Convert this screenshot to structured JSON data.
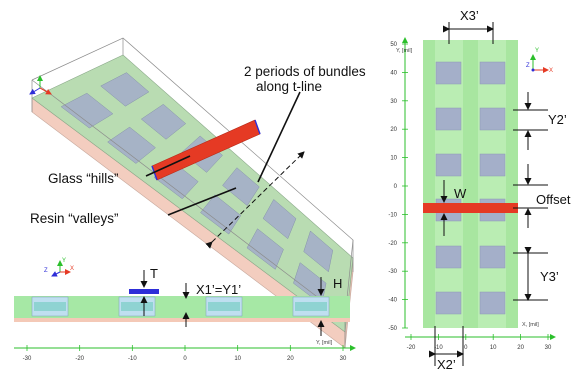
{
  "annotations": {
    "periods_line1": "2 periods of bundles",
    "periods_line2": "along t-line",
    "glass_hills": "Glass “hills”",
    "resin_valleys": "Resin “valleys”"
  },
  "side_view": {
    "labels": {
      "T": "T",
      "X1Y1": "X1’=Y1’",
      "H": "H"
    },
    "axis": {
      "ticks": [
        "-30",
        "-20",
        "-10",
        "0",
        "10",
        "20",
        "30"
      ],
      "name": "Y, [mil]"
    },
    "triad": {
      "y": "Y",
      "z": "Z",
      "x": "X"
    }
  },
  "top_view": {
    "labels": {
      "X3": "X3’",
      "Y2": "Y2’",
      "Offset": "Offset",
      "W": "W",
      "Y3": "Y3’",
      "X2": "X2’"
    },
    "y_axis": {
      "ticks": [
        "50",
        "40",
        "30",
        "20",
        "10",
        "0",
        "-10",
        "-20",
        "-30",
        "-40",
        "-50"
      ],
      "name": "Y, [mil]"
    },
    "x_axis": {
      "ticks": [
        "-20",
        "-10",
        "0",
        "10",
        "20",
        "30"
      ],
      "name": "X, [mil]"
    },
    "triad": {
      "y": "Y",
      "z": "Z",
      "x": "X"
    }
  },
  "iso_triad": {
    "y": "Y",
    "z": "Z",
    "x": "X"
  },
  "colors": {
    "resin_green": "#9ee89a",
    "glass_bundle": "#a4afc9",
    "trace_red": "#e53a24",
    "marker_blue": "#2e2ed8",
    "axis_green": "#2bbf2b"
  }
}
